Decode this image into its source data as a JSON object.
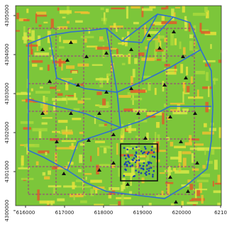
{
  "axes": {
    "x_ticks": [
      "616000",
      "617000",
      "618000",
      "619000",
      "620000",
      "6210"
    ],
    "y_ticks": [
      "4300000",
      "4301000",
      "4302000",
      "4303000",
      "4304000",
      "4305000"
    ]
  }
}
